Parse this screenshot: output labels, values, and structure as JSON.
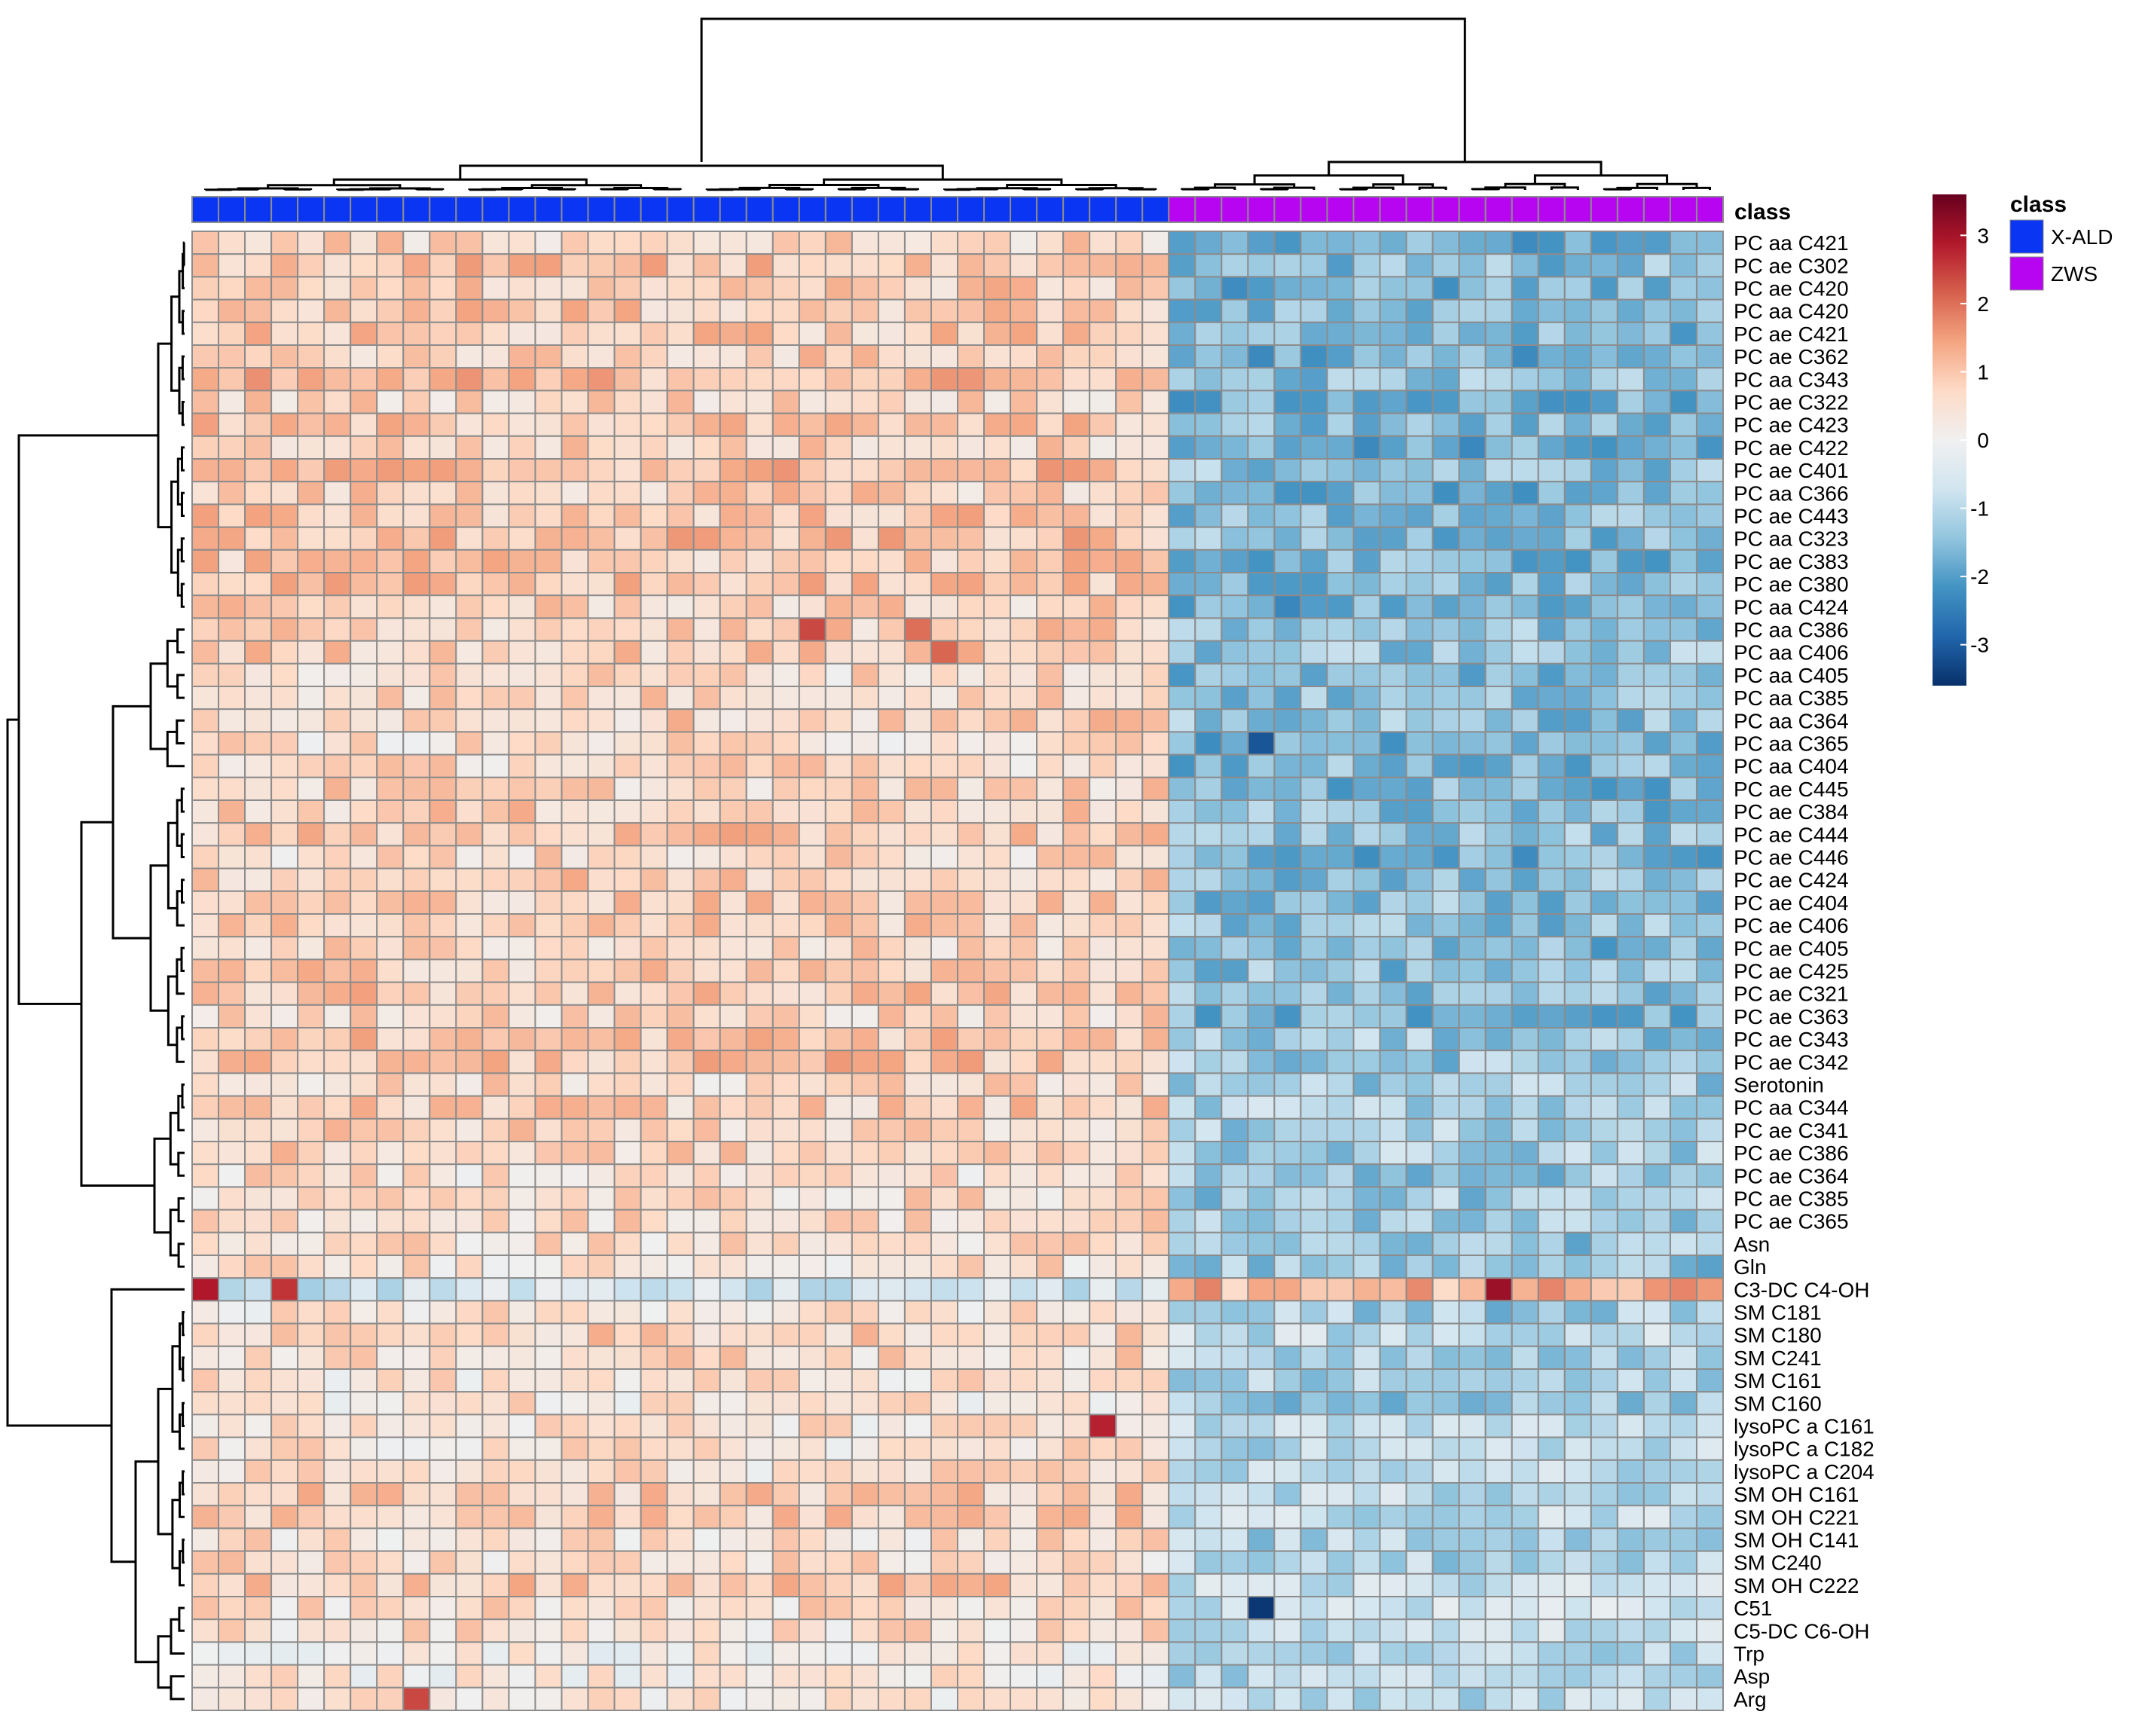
{
  "chart_data": {
    "type": "heatmap",
    "title": "",
    "annotation": {
      "label": "class",
      "legend_title": "class",
      "legend_items": [
        {
          "name": "X-ALD",
          "color": "#0a35f2"
        },
        {
          "name": "ZWS",
          "color": "#b705f2"
        }
      ],
      "columns": [
        "X-ALD",
        "X-ALD",
        "X-ALD",
        "X-ALD",
        "X-ALD",
        "X-ALD",
        "X-ALD",
        "X-ALD",
        "X-ALD",
        "X-ALD",
        "X-ALD",
        "X-ALD",
        "X-ALD",
        "X-ALD",
        "X-ALD",
        "X-ALD",
        "X-ALD",
        "X-ALD",
        "X-ALD",
        "X-ALD",
        "X-ALD",
        "X-ALD",
        "X-ALD",
        "X-ALD",
        "X-ALD",
        "X-ALD",
        "X-ALD",
        "X-ALD",
        "X-ALD",
        "X-ALD",
        "X-ALD",
        "X-ALD",
        "X-ALD",
        "X-ALD",
        "X-ALD",
        "X-ALD",
        "X-ALD",
        "ZWS",
        "ZWS",
        "ZWS",
        "ZWS",
        "ZWS",
        "ZWS",
        "ZWS",
        "ZWS",
        "ZWS",
        "ZWS",
        "ZWS",
        "ZWS",
        "ZWS",
        "ZWS",
        "ZWS",
        "ZWS",
        "ZWS",
        "ZWS",
        "ZWS",
        "ZWS",
        "ZWS"
      ]
    },
    "row_labels": [
      "PC aa C421",
      "PC ae C302",
      "PC ae C420",
      "PC aa C420",
      "PC ae C421",
      "PC ae C362",
      "PC aa C343",
      "PC ae C322",
      "PC ae C423",
      "PC ae C422",
      "PC ae C401",
      "PC aa C366",
      "PC ae C443",
      "PC aa C323",
      "PC ae C383",
      "PC ae C380",
      "PC aa C424",
      "PC aa C386",
      "PC aa C406",
      "PC aa C405",
      "PC aa C385",
      "PC aa C364",
      "PC aa C365",
      "PC aa C404",
      "PC ae C445",
      "PC ae C384",
      "PC ae C444",
      "PC ae C446",
      "PC ae C424",
      "PC ae C404",
      "PC ae C406",
      "PC ae C405",
      "PC ae C425",
      "PC ae C321",
      "PC ae C363",
      "PC ae C343",
      "PC ae C342",
      "Serotonin",
      "PC aa C344",
      "PC ae C341",
      "PC ae C386",
      "PC ae C364",
      "PC ae C385",
      "PC ae C365",
      "Asn",
      "Gln",
      "C3-DC C4-OH",
      "SM C181",
      "SM C180",
      "SM C241",
      "SM C161",
      "SM C160",
      "lysoPC a C161",
      "lysoPC a C182",
      "lysoPC a C204",
      "SM OH C161",
      "SM OH C221",
      "SM OH C141",
      "SM C240",
      "SM OH C222",
      "C51",
      "C5-DC C6-OH",
      "Trp",
      "Asp",
      "Arg"
    ],
    "n_columns": 58,
    "color_scale": {
      "min": -3.6,
      "max": 3.6,
      "ticks": [
        3,
        2,
        1,
        0,
        -1,
        -2,
        -3
      ],
      "colors": [
        "#08306b",
        "#2166ac",
        "#4393c3",
        "#92c5de",
        "#d1e5f0",
        "#f0f0f0",
        "#fddbc7",
        "#f4a582",
        "#d6604d",
        "#b2182b",
        "#67001f"
      ]
    },
    "cluster_blocks": [
      {
        "rows": [
          0,
          16
        ],
        "xald": 0.9,
        "zws": -1.6
      },
      {
        "rows": [
          17,
          23
        ],
        "xald": 0.7,
        "zws": -1.5
      },
      {
        "rows": [
          24,
          36
        ],
        "xald": 0.8,
        "zws": -1.5
      },
      {
        "rows": [
          37,
          45
        ],
        "xald": 0.7,
        "zws": -1.2
      },
      {
        "rows": [
          46,
          46
        ],
        "xald": -0.5,
        "zws": 1.4
      },
      {
        "rows": [
          47,
          51
        ],
        "xald": 0.6,
        "zws": -1.1
      },
      {
        "rows": [
          52,
          54
        ],
        "xald": 0.6,
        "zws": -0.8
      },
      {
        "rows": [
          55,
          59
        ],
        "xald": 0.7,
        "zws": -1.0
      },
      {
        "rows": [
          60,
          61
        ],
        "xald": 0.5,
        "zws": -0.8
      },
      {
        "rows": [
          62,
          64
        ],
        "xald": 0.4,
        "zws": -1.0
      }
    ],
    "notable_cells": [
      {
        "row": 17,
        "col": 23,
        "value": 2.4
      },
      {
        "row": 17,
        "col": 27,
        "value": 2.0
      },
      {
        "row": 18,
        "col": 28,
        "value": 2.1
      },
      {
        "row": 46,
        "col": 0,
        "value": 2.9
      },
      {
        "row": 46,
        "col": 3,
        "value": 2.6
      },
      {
        "row": 46,
        "col": 49,
        "value": 3.1
      },
      {
        "row": 52,
        "col": 34,
        "value": 2.8
      },
      {
        "row": 60,
        "col": 40,
        "value": -3.5
      },
      {
        "row": 64,
        "col": 8,
        "value": 2.4
      },
      {
        "row": 22,
        "col": 40,
        "value": -3.1
      }
    ]
  }
}
